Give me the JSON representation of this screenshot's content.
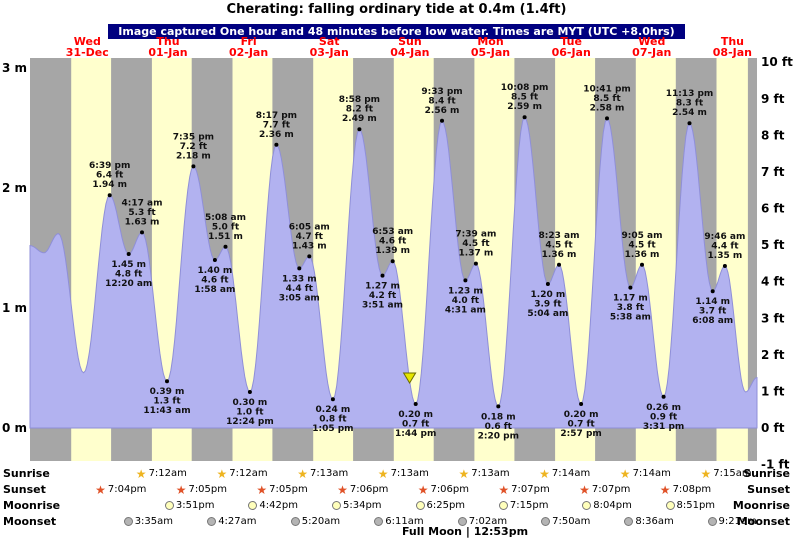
{
  "chart_data": {
    "type": "area",
    "title": "Cherating: falling  ordinary tide at 0.4m (1.4ft)",
    "subtitle": "Image captured One hour and 48 minutes before low water. Times are MYT (UTC +8.0hrs)",
    "x_unit": "hours from Wed 31-Dec 00:00 MYT",
    "xlim_hours": [
      -5.06,
      211.3
    ],
    "y_unit_left": "m",
    "y_unit_right": "ft",
    "y_range_m": [
      -0.305,
      3.07
    ],
    "y_range_ft": [
      -1,
      10
    ],
    "days": [
      {
        "dow": "Wed",
        "date": "31-Dec"
      },
      {
        "dow": "Thu",
        "date": "01-Jan"
      },
      {
        "dow": "Fri",
        "date": "02-Jan"
      },
      {
        "dow": "Sat",
        "date": "03-Jan"
      },
      {
        "dow": "Sun",
        "date": "04-Jan"
      },
      {
        "dow": "Mon",
        "date": "05-Jan"
      },
      {
        "dow": "Tue",
        "date": "06-Jan"
      },
      {
        "dow": "Wed",
        "date": "07-Jan"
      },
      {
        "dow": "Thu",
        "date": "08-Jan"
      }
    ],
    "y_axis_left_ticks": [
      "3 m",
      "2 m",
      "1 m",
      "0 m"
    ],
    "y_axis_right_ticks": [
      "10 ft",
      "9 ft",
      "8 ft",
      "7 ft",
      "6 ft",
      "5 ft",
      "4 ft",
      "3 ft",
      "2 ft",
      "1 ft",
      "0 ft",
      "-1 ft"
    ],
    "night_bands_hours": [
      [
        -5.06,
        7.2
      ],
      [
        19.07,
        31.2
      ],
      [
        43.08,
        55.22
      ],
      [
        67.08,
        79.22
      ],
      [
        91.1,
        103.22
      ],
      [
        115.1,
        127.22
      ],
      [
        139.12,
        151.23
      ],
      [
        163.12,
        175.23
      ],
      [
        187.13,
        199.25
      ],
      [
        208.6,
        211.3
      ]
    ],
    "current_marker": {
      "t": 107.93,
      "m": 0.4,
      "note": "falling tide at 0.4m (1.4ft)"
    },
    "points": [
      {
        "t": -5.06,
        "m": 1.52
      },
      {
        "t": -0.9,
        "m": 1.46
      },
      {
        "t": 3.4,
        "m": 1.62
      },
      {
        "t": 10.9,
        "m": 0.46
      },
      {
        "t": 18.65,
        "m": 1.94,
        "label": [
          "6:39 pm",
          "6.4 ft",
          "1.94 m"
        ],
        "pos": "above"
      },
      {
        "t": 24.33,
        "m": 1.45,
        "label": [
          "1.45 m",
          "4.8 ft",
          "12:20 am"
        ],
        "pos": "below"
      },
      {
        "t": 28.28,
        "m": 1.63,
        "label": [
          "4:17 am",
          "5.3 ft",
          "1.63 m"
        ],
        "pos": "above"
      },
      {
        "t": 35.72,
        "m": 0.39,
        "label": [
          "0.39 m",
          "1.3 ft",
          "11:43 am"
        ],
        "pos": "below"
      },
      {
        "t": 43.58,
        "m": 2.18,
        "label": [
          "7:35 pm",
          "7.2 ft",
          "2.18 m"
        ],
        "pos": "above"
      },
      {
        "t": 49.97,
        "m": 1.4,
        "label": [
          "1.40 m",
          "4.6 ft",
          "1:58 am"
        ],
        "pos": "below"
      },
      {
        "t": 53.13,
        "m": 1.51,
        "label": [
          "5:08 am",
          "5.0 ft",
          "1.51 m"
        ],
        "pos": "above"
      },
      {
        "t": 60.4,
        "m": 0.3,
        "label": [
          "0.30 m",
          "1.0 ft",
          "12:24 pm"
        ],
        "pos": "below"
      },
      {
        "t": 68.28,
        "m": 2.36,
        "label": [
          "8:17 pm",
          "7.7 ft",
          "2.36 m"
        ],
        "pos": "above"
      },
      {
        "t": 75.08,
        "m": 1.33,
        "label": [
          "1.33 m",
          "4.4 ft",
          "3:05 am"
        ],
        "pos": "below"
      },
      {
        "t": 78.08,
        "m": 1.43,
        "label": [
          "6:05 am",
          "4.7 ft",
          "1.43 m"
        ],
        "pos": "above"
      },
      {
        "t": 85.08,
        "m": 0.24,
        "label": [
          "0.24 m",
          "0.8 ft",
          "1:05 pm"
        ],
        "pos": "below"
      },
      {
        "t": 92.97,
        "m": 2.49,
        "label": [
          "8:58 pm",
          "8.2 ft",
          "2.49 m"
        ],
        "pos": "above"
      },
      {
        "t": 99.85,
        "m": 1.27,
        "label": [
          "1.27 m",
          "4.2 ft",
          "3:51 am"
        ],
        "pos": "below"
      },
      {
        "t": 102.88,
        "m": 1.39,
        "label": [
          "6:53 am",
          "4.6 ft",
          "1.39 m"
        ],
        "pos": "above"
      },
      {
        "t": 109.73,
        "m": 0.2,
        "label": [
          "0.20 m",
          "0.7 ft",
          "1:44 pm"
        ],
        "pos": "below"
      },
      {
        "t": 117.55,
        "m": 2.56,
        "label": [
          "9:33 pm",
          "8.4 ft",
          "2.56 m"
        ],
        "pos": "above"
      },
      {
        "t": 124.52,
        "m": 1.23,
        "label": [
          "1.23 m",
          "4.0 ft",
          "4:31 am"
        ],
        "pos": "below"
      },
      {
        "t": 127.65,
        "m": 1.37,
        "label": [
          "7:39 am",
          "4.5 ft",
          "1.37 m"
        ],
        "pos": "above"
      },
      {
        "t": 134.33,
        "m": 0.18,
        "label": [
          "0.18 m",
          "0.6 ft",
          "2:20 pm"
        ],
        "pos": "below"
      },
      {
        "t": 142.13,
        "m": 2.59,
        "label": [
          "10:08 pm",
          "8.5 ft",
          "2.59 m"
        ],
        "pos": "above"
      },
      {
        "t": 149.07,
        "m": 1.2,
        "label": [
          "1.20 m",
          "3.9 ft",
          "5:04 am"
        ],
        "pos": "below"
      },
      {
        "t": 152.38,
        "m": 1.36,
        "label": [
          "8:23 am",
          "4.5 ft",
          "1.36 m"
        ],
        "pos": "above"
      },
      {
        "t": 158.95,
        "m": 0.2,
        "label": [
          "0.20 m",
          "0.7 ft",
          "2:57 pm"
        ],
        "pos": "below"
      },
      {
        "t": 166.68,
        "m": 2.58,
        "label": [
          "10:41 pm",
          "8.5 ft",
          "2.58 m"
        ],
        "pos": "above"
      },
      {
        "t": 173.63,
        "m": 1.17,
        "label": [
          "1.17 m",
          "3.8 ft",
          "5:38 am"
        ],
        "pos": "below"
      },
      {
        "t": 177.08,
        "m": 1.36,
        "label": [
          "9:05 am",
          "4.5 ft",
          "1.36 m"
        ],
        "pos": "above"
      },
      {
        "t": 183.52,
        "m": 0.26,
        "label": [
          "0.26 m",
          "0.9 ft",
          "3:31 pm"
        ],
        "pos": "below"
      },
      {
        "t": 191.22,
        "m": 2.54,
        "label": [
          "11:13 pm",
          "8.3 ft",
          "2.54 m"
        ],
        "pos": "above"
      },
      {
        "t": 198.13,
        "m": 1.14,
        "label": [
          "1.14 m",
          "3.7 ft",
          "6:08 am"
        ],
        "pos": "below"
      },
      {
        "t": 201.77,
        "m": 1.35,
        "label": [
          "9:46 am",
          "4.4 ft",
          "1.35 m"
        ],
        "pos": "above"
      },
      {
        "t": 207.9,
        "m": 0.3
      },
      {
        "t": 211.3,
        "m": 0.42
      }
    ]
  },
  "astro": {
    "rows": [
      {
        "label": "Sunrise",
        "event_name": "sunrise-event",
        "icon": "sunrise-star-icon",
        "icon_type": "star",
        "color_key": "sunrise_star",
        "events": [
          {
            "t": 31.2,
            "time": "7:12am"
          },
          {
            "t": 55.2,
            "time": "7:12am"
          },
          {
            "t": 79.22,
            "time": "7:13am"
          },
          {
            "t": 103.22,
            "time": "7:13am"
          },
          {
            "t": 127.22,
            "time": "7:13am"
          },
          {
            "t": 151.23,
            "time": "7:14am"
          },
          {
            "t": 175.23,
            "time": "7:14am"
          },
          {
            "t": 199.25,
            "time": "7:15am"
          }
        ]
      },
      {
        "label": "Sunset",
        "event_name": "sunset-event",
        "icon": "sunset-star-icon",
        "icon_type": "star",
        "color_key": "sunset_star",
        "events": [
          {
            "t": 19.07,
            "time": "7:04pm"
          },
          {
            "t": 43.08,
            "time": "7:05pm"
          },
          {
            "t": 67.08,
            "time": "7:05pm"
          },
          {
            "t": 91.1,
            "time": "7:06pm"
          },
          {
            "t": 115.1,
            "time": "7:06pm"
          },
          {
            "t": 139.12,
            "time": "7:07pm"
          },
          {
            "t": 163.12,
            "time": "7:07pm"
          },
          {
            "t": 187.13,
            "time": "7:08pm"
          }
        ]
      },
      {
        "label": "Moonrise",
        "event_name": "moonrise-event",
        "icon": "moonrise-moon-icon",
        "icon_type": "moon",
        "color_key": "moonrise_moon",
        "events": [
          {
            "t": 39.85,
            "time": "3:51pm"
          },
          {
            "t": 64.7,
            "time": "4:42pm"
          },
          {
            "t": 89.57,
            "time": "5:34pm"
          },
          {
            "t": 114.42,
            "time": "6:25pm"
          },
          {
            "t": 139.25,
            "time": "7:15pm"
          },
          {
            "t": 164.07,
            "time": "8:04pm"
          },
          {
            "t": 188.85,
            "time": "8:51pm"
          }
        ]
      },
      {
        "label": "Moonset",
        "event_name": "moonset-event",
        "icon": "moonset-moon-icon",
        "icon_type": "moon",
        "color_key": "moonset_moon",
        "events": [
          {
            "t": 27.58,
            "time": "3:35am"
          },
          {
            "t": 52.45,
            "time": "4:27am"
          },
          {
            "t": 77.33,
            "time": "5:20am"
          },
          {
            "t": 102.18,
            "time": "6:11am"
          },
          {
            "t": 127.03,
            "time": "7:02am"
          },
          {
            "t": 151.83,
            "time": "7:50am"
          },
          {
            "t": 176.6,
            "time": "8:36am"
          },
          {
            "t": 201.35,
            "time": "9:21am"
          }
        ]
      }
    ],
    "footer": "Full Moon | 12:53pm"
  },
  "colors": {
    "banner_bg": "#000080",
    "banner_text": "#ffffff",
    "day_label": "#ff0000",
    "day_bg": "#ffffcd",
    "night_bg": "#a6a6a6",
    "tide_fill": "#b2b2f0",
    "tide_stroke": "#8f8fd8",
    "marker_fill": "#e6e600",
    "marker_stroke": "#6b6b00",
    "sunrise_star": "#eeb420",
    "sunset_star": "#e05228",
    "moonrise_moon": "#ffffbb",
    "moonset_moon": "#b4b4b4",
    "moon_border": "#777777"
  }
}
